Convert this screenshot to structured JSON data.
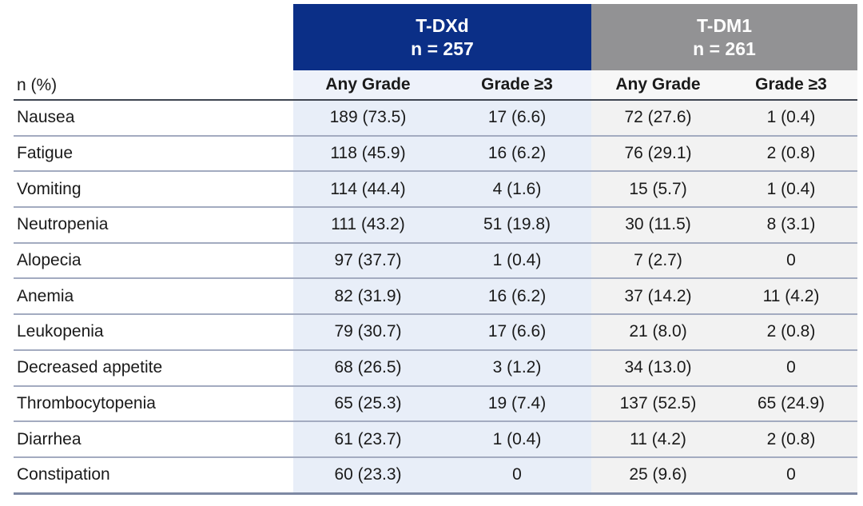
{
  "table": {
    "corner_label": "n (%)",
    "groups": [
      {
        "name": "T-DXd",
        "n_label": "n = 257"
      },
      {
        "name": "T-DM1",
        "n_label": "n = 261"
      }
    ],
    "sub_headers": [
      "Any Grade",
      "Grade ≥3",
      "Any Grade",
      "Grade ≥3"
    ],
    "rows": [
      {
        "label": "Nausea",
        "values": [
          "189 (73.5)",
          "17 (6.6)",
          "72 (27.6)",
          "1 (0.4)"
        ]
      },
      {
        "label": "Fatigue",
        "values": [
          "118 (45.9)",
          "16 (6.2)",
          "76 (29.1)",
          "2 (0.8)"
        ]
      },
      {
        "label": "Vomiting",
        "values": [
          "114 (44.4)",
          "4 (1.6)",
          "15 (5.7)",
          "1 (0.4)"
        ]
      },
      {
        "label": "Neutropenia",
        "values": [
          "111 (43.2)",
          "51 (19.8)",
          "30 (11.5)",
          "8 (3.1)"
        ]
      },
      {
        "label": "Alopecia",
        "values": [
          "97 (37.7)",
          "1 (0.4)",
          "7 (2.7)",
          "0"
        ]
      },
      {
        "label": "Anemia",
        "values": [
          "82 (31.9)",
          "16 (6.2)",
          "37 (14.2)",
          "11 (4.2)"
        ]
      },
      {
        "label": "Leukopenia",
        "values": [
          "79 (30.7)",
          "17 (6.6)",
          "21 (8.0)",
          "2 (0.8)"
        ]
      },
      {
        "label": "Decreased appetite",
        "values": [
          "68 (26.5)",
          "3 (1.2)",
          "34 (13.0)",
          "0"
        ]
      },
      {
        "label": "Thrombocytopenia",
        "values": [
          "65 (25.3)",
          "19 (7.4)",
          "137 (52.5)",
          "65 (24.9)"
        ]
      },
      {
        "label": "Diarrhea",
        "values": [
          "61 (23.7)",
          "1 (0.4)",
          "11 (4.2)",
          "2 (0.8)"
        ]
      },
      {
        "label": "Constipation",
        "values": [
          "60 (23.3)",
          "0",
          "25 (9.6)",
          "0"
        ]
      }
    ]
  },
  "colors": {
    "tdxd_header": "#0b2f87",
    "tdm1_header": "#929294",
    "sub_blue_bg": "#eef2fa",
    "sub_gray_bg": "#f7f7f7",
    "body_blue_bg": "#e8eef8",
    "body_gray_bg": "#f2f2f2",
    "row_divider": "#a3abc0",
    "header_divider": "#3e4450",
    "bottom_border": "#7d88a3",
    "header_text": "#ffffff",
    "text": "#1a1a1a"
  }
}
